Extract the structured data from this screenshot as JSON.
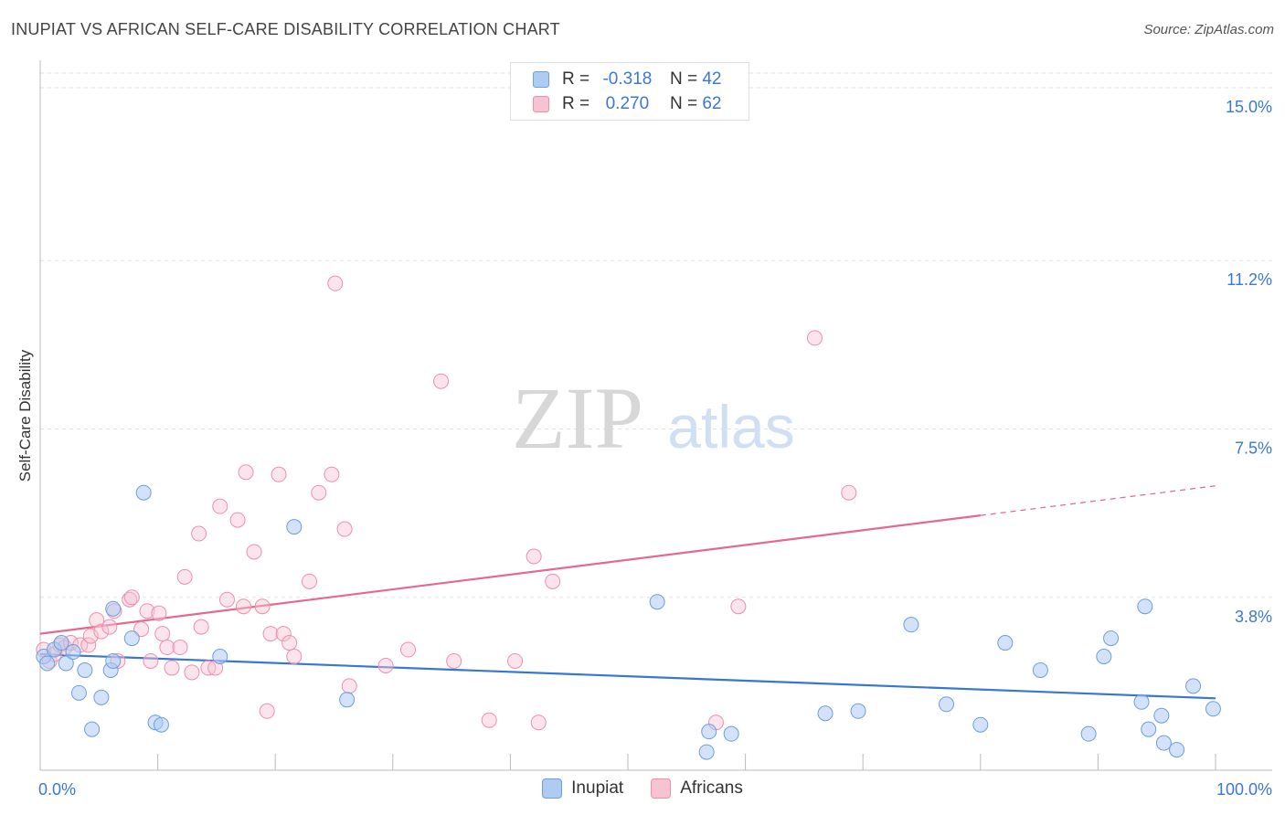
{
  "header": {
    "title": "INUPIAT VS AFRICAN SELF-CARE DISABILITY CORRELATION CHART",
    "source": "Source: ZipAtlas.com"
  },
  "watermark": {
    "zip": "ZIP",
    "atlas": "atlas"
  },
  "legend": {
    "rows": [
      {
        "r_label": "R =",
        "r_value": "-0.318",
        "n_label": "N =",
        "n_value": "42"
      },
      {
        "r_label": "R =",
        "r_value": "0.270",
        "n_label": "N =",
        "n_value": "62"
      }
    ]
  },
  "colors": {
    "inupiat_fill": "#aecbf2",
    "inupiat_stroke": "#6b9fe0",
    "inupiat_line": "#3676d4",
    "africans_fill": "#f7c3d3",
    "africans_stroke": "#ee8fac",
    "africans_line": "#e5698f",
    "tick_label": "#3a78d6"
  },
  "chart_data": {
    "type": "scatter",
    "title": "INUPIAT VS AFRICAN SELF-CARE DISABILITY CORRELATION CHART",
    "xlabel": "",
    "ylabel": "Self-Care Disability",
    "xlim": [
      0,
      100
    ],
    "ylim": [
      0,
      15.0
    ],
    "x_tick_labels": {
      "min": "0.0%",
      "max": "100.0%"
    },
    "y_ticks": [
      {
        "value": 3.8,
        "label": "3.8%"
      },
      {
        "value": 7.5,
        "label": "7.5%"
      },
      {
        "value": 11.2,
        "label": "11.2%"
      },
      {
        "value": 15.0,
        "label": "15.0%"
      }
    ],
    "grid": true,
    "legend_position": "top-center",
    "series": [
      {
        "name": "Inupiat",
        "r": -0.318,
        "n": 42,
        "trend": {
          "x0": 0,
          "y0": 2.55,
          "x1": 100,
          "y1": 1.58
        },
        "points": [
          [
            0.3,
            2.5
          ],
          [
            0.6,
            2.35
          ],
          [
            1.2,
            2.65
          ],
          [
            1.8,
            2.8
          ],
          [
            2.2,
            2.35
          ],
          [
            2.8,
            2.6
          ],
          [
            3.3,
            1.7
          ],
          [
            3.8,
            2.2
          ],
          [
            4.4,
            0.9
          ],
          [
            5.2,
            1.6
          ],
          [
            6.0,
            2.2
          ],
          [
            6.2,
            2.4
          ],
          [
            6.2,
            3.55
          ],
          [
            7.8,
            2.9
          ],
          [
            8.8,
            6.1
          ],
          [
            9.8,
            1.05
          ],
          [
            10.3,
            1.0
          ],
          [
            15.3,
            2.5
          ],
          [
            21.6,
            5.35
          ],
          [
            26.1,
            1.55
          ],
          [
            52.5,
            3.7
          ],
          [
            56.7,
            0.4
          ],
          [
            56.9,
            0.85
          ],
          [
            58.8,
            0.8
          ],
          [
            66.8,
            1.25
          ],
          [
            69.6,
            1.3
          ],
          [
            74.1,
            3.2
          ],
          [
            77.1,
            1.45
          ],
          [
            80.0,
            1.0
          ],
          [
            82.1,
            2.8
          ],
          [
            85.1,
            2.2
          ],
          [
            89.2,
            0.8
          ],
          [
            90.5,
            2.5
          ],
          [
            91.1,
            2.9
          ],
          [
            93.7,
            1.5
          ],
          [
            94.0,
            3.6
          ],
          [
            94.3,
            0.9
          ],
          [
            95.4,
            1.2
          ],
          [
            95.6,
            0.6
          ],
          [
            96.7,
            0.45
          ],
          [
            98.1,
            1.85
          ],
          [
            99.8,
            1.35
          ]
        ]
      },
      {
        "name": "Africans",
        "r": 0.27,
        "n": 62,
        "trend": {
          "x0": 0,
          "y0": 3.0,
          "x1": 80,
          "y1": 5.6
        },
        "trend_dashed": {
          "x0": 80,
          "y0": 5.6,
          "x1": 100,
          "y1": 6.25
        },
        "points": [
          [
            0.3,
            2.65
          ],
          [
            0.8,
            2.4
          ],
          [
            1.2,
            2.55
          ],
          [
            1.7,
            2.75
          ],
          [
            2.1,
            2.7
          ],
          [
            2.6,
            2.8
          ],
          [
            3.4,
            2.75
          ],
          [
            4.1,
            2.75
          ],
          [
            4.3,
            2.95
          ],
          [
            4.8,
            3.3
          ],
          [
            5.2,
            3.05
          ],
          [
            5.9,
            3.15
          ],
          [
            6.3,
            3.5
          ],
          [
            6.6,
            2.4
          ],
          [
            7.6,
            3.75
          ],
          [
            7.8,
            3.8
          ],
          [
            8.6,
            3.1
          ],
          [
            9.1,
            3.5
          ],
          [
            9.4,
            2.4
          ],
          [
            10.1,
            3.45
          ],
          [
            10.4,
            3.0
          ],
          [
            10.8,
            2.7
          ],
          [
            11.2,
            2.25
          ],
          [
            11.9,
            2.7
          ],
          [
            12.3,
            4.25
          ],
          [
            12.9,
            2.15
          ],
          [
            13.5,
            5.2
          ],
          [
            13.7,
            3.15
          ],
          [
            14.3,
            2.25
          ],
          [
            14.9,
            2.25
          ],
          [
            15.3,
            5.8
          ],
          [
            15.9,
            3.75
          ],
          [
            16.8,
            5.5
          ],
          [
            17.3,
            3.6
          ],
          [
            17.5,
            6.55
          ],
          [
            18.2,
            4.8
          ],
          [
            18.9,
            3.6
          ],
          [
            19.3,
            1.3
          ],
          [
            19.6,
            3.0
          ],
          [
            20.3,
            6.5
          ],
          [
            20.7,
            3.0
          ],
          [
            21.2,
            2.8
          ],
          [
            21.6,
            2.5
          ],
          [
            22.9,
            4.15
          ],
          [
            23.7,
            6.1
          ],
          [
            24.8,
            6.5
          ],
          [
            25.1,
            10.7
          ],
          [
            25.9,
            5.3
          ],
          [
            26.3,
            1.85
          ],
          [
            29.4,
            2.3
          ],
          [
            31.3,
            2.65
          ],
          [
            34.1,
            8.55
          ],
          [
            35.2,
            2.4
          ],
          [
            38.2,
            1.1
          ],
          [
            40.4,
            2.4
          ],
          [
            42.0,
            4.7
          ],
          [
            42.4,
            1.05
          ],
          [
            43.6,
            4.15
          ],
          [
            57.5,
            1.05
          ],
          [
            59.4,
            3.6
          ],
          [
            65.9,
            9.5
          ],
          [
            68.8,
            6.1
          ]
        ]
      }
    ]
  },
  "bottom_legend": {
    "items": [
      "Inupiat",
      "Africans"
    ]
  }
}
